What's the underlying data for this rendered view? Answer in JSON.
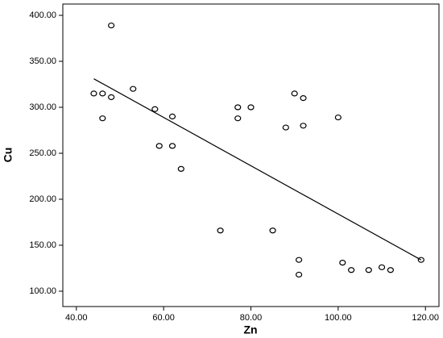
{
  "chart_data": {
    "type": "scatter",
    "x_label": "Zn",
    "y_label": "Cu",
    "x": [
      44,
      46,
      48,
      46,
      48,
      53,
      58,
      59,
      62,
      62,
      64,
      73,
      77,
      77,
      80,
      85,
      88,
      90,
      92,
      92,
      91,
      91,
      100,
      101,
      103,
      107,
      110,
      112,
      119
    ],
    "values": [
      315,
      315,
      311,
      288,
      389,
      320,
      298,
      258,
      290,
      258,
      233,
      166,
      300,
      288,
      300,
      166,
      278,
      315,
      310,
      280,
      134,
      118,
      289,
      131,
      123,
      123,
      126,
      123,
      134
    ],
    "color": "#000000",
    "fit_line": {
      "x": [
        44,
        119
      ],
      "y": [
        331,
        134
      ]
    },
    "xlim": [
      36.9,
      123.1
    ],
    "ylim": [
      83.3,
      412.3
    ],
    "xticks": [
      {
        "value": 40,
        "label": "40.00"
      },
      {
        "value": 60,
        "label": "60.00"
      },
      {
        "value": 80,
        "label": "80.00"
      },
      {
        "value": 100,
        "label": "100.00"
      },
      {
        "value": 120,
        "label": "120.00"
      }
    ],
    "yticks": [
      {
        "value": 100,
        "label": "100.00"
      },
      {
        "value": 150,
        "label": "150.00"
      },
      {
        "value": 200,
        "label": "200.00"
      },
      {
        "value": 250,
        "label": "250.00"
      },
      {
        "value": 300,
        "label": "300.00"
      },
      {
        "value": 350,
        "label": "350.00"
      },
      {
        "value": 400,
        "label": "400.00"
      }
    ],
    "grid": false
  }
}
